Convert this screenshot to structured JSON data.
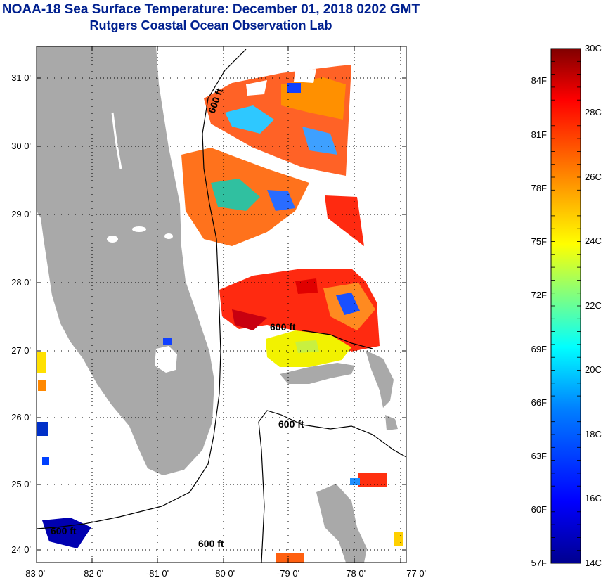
{
  "title": "NOAA-18 Sea Surface Temperature:  December 01, 2018 0202 GMT",
  "subtitle": "Rutgers Coastal Ocean Observation Lab",
  "map": {
    "lat_labels": [
      "31 0'",
      "30 0'",
      "29 0'",
      "28 0'",
      "27 0'",
      "26 0'",
      "25 0'",
      "24 0'"
    ],
    "lon_labels": [
      "-83 0'",
      "-82 0'",
      "-81 0'",
      "-80 0'",
      "-79 0'",
      "-78 0'",
      "-77 0'"
    ],
    "contour_label": "600 ft",
    "land_color": "#a9a9a9"
  },
  "colorbar": {
    "celsius_labels": [
      "30C",
      "28C",
      "26C",
      "24C",
      "22C",
      "20C",
      "18C",
      "16C",
      "14C"
    ],
    "fahrenheit_labels": [
      "84F",
      "81F",
      "78F",
      "75F",
      "72F",
      "69F",
      "66F",
      "63F",
      "60F",
      "57F"
    ],
    "colors": [
      "#00008f",
      "#0000ff",
      "#0080ff",
      "#00ffff",
      "#80ff80",
      "#ffff00",
      "#ff8000",
      "#ff0000",
      "#800000"
    ]
  }
}
